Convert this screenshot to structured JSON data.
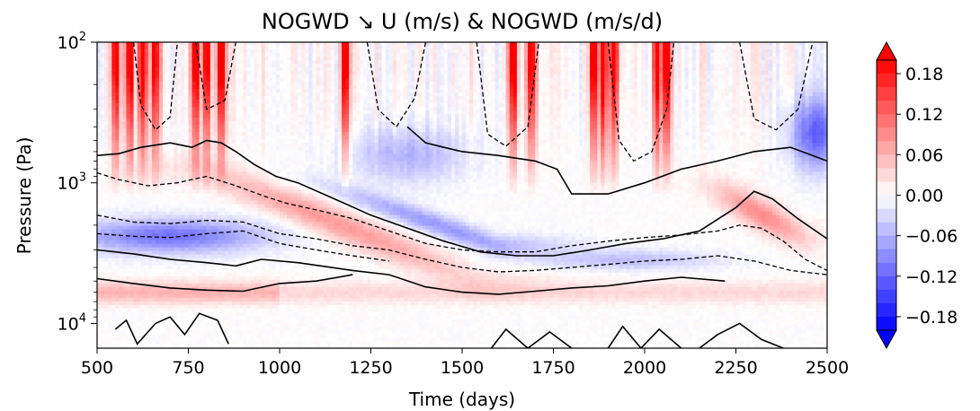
{
  "chart_data": {
    "type": "heatmap",
    "title": "NOGWD ↘  U (m/s) & NOGWD (m/s/d)",
    "xlabel": "Time (days)",
    "ylabel": "Pressure (Pa)",
    "x_scale": "linear",
    "y_scale": "log",
    "y_inverted": true,
    "xlim": [
      500,
      2500
    ],
    "ylim_pa": [
      100,
      15000
    ],
    "xticks": [
      {
        "value": 500,
        "label": "500"
      },
      {
        "value": 750,
        "label": "750"
      },
      {
        "value": 1000,
        "label": "1000"
      },
      {
        "value": 1250,
        "label": "1250"
      },
      {
        "value": 1500,
        "label": "1500"
      },
      {
        "value": 1750,
        "label": "1750"
      },
      {
        "value": 2000,
        "label": "2000"
      },
      {
        "value": 2250,
        "label": "2250"
      },
      {
        "value": 2500,
        "label": "2500"
      }
    ],
    "yticks": [
      {
        "value": 100,
        "base": "10",
        "exp": "2"
      },
      {
        "value": 1000,
        "base": "10",
        "exp": "3"
      },
      {
        "value": 10000,
        "base": "10",
        "exp": "4"
      }
    ],
    "colorbar": {
      "colormap": "bwr",
      "range": [
        -0.2,
        0.2
      ],
      "extend": "both",
      "tick_values": [
        0.18,
        0.12,
        0.06,
        0.0,
        -0.06,
        -0.12,
        -0.18
      ],
      "tick_labels": [
        "0.18",
        "0.12",
        "0.06",
        "0.00",
        "−0.06",
        "−0.12",
        "−0.18"
      ]
    },
    "colors": {
      "negative_extreme": "#0000e6",
      "neutral": "#ffffff",
      "positive_extreme": "#e60000",
      "contour_line": "#000000"
    },
    "contours": {
      "quantity": "U (m/s)",
      "positive_style": "solid",
      "negative_style": "dashed"
    }
  }
}
